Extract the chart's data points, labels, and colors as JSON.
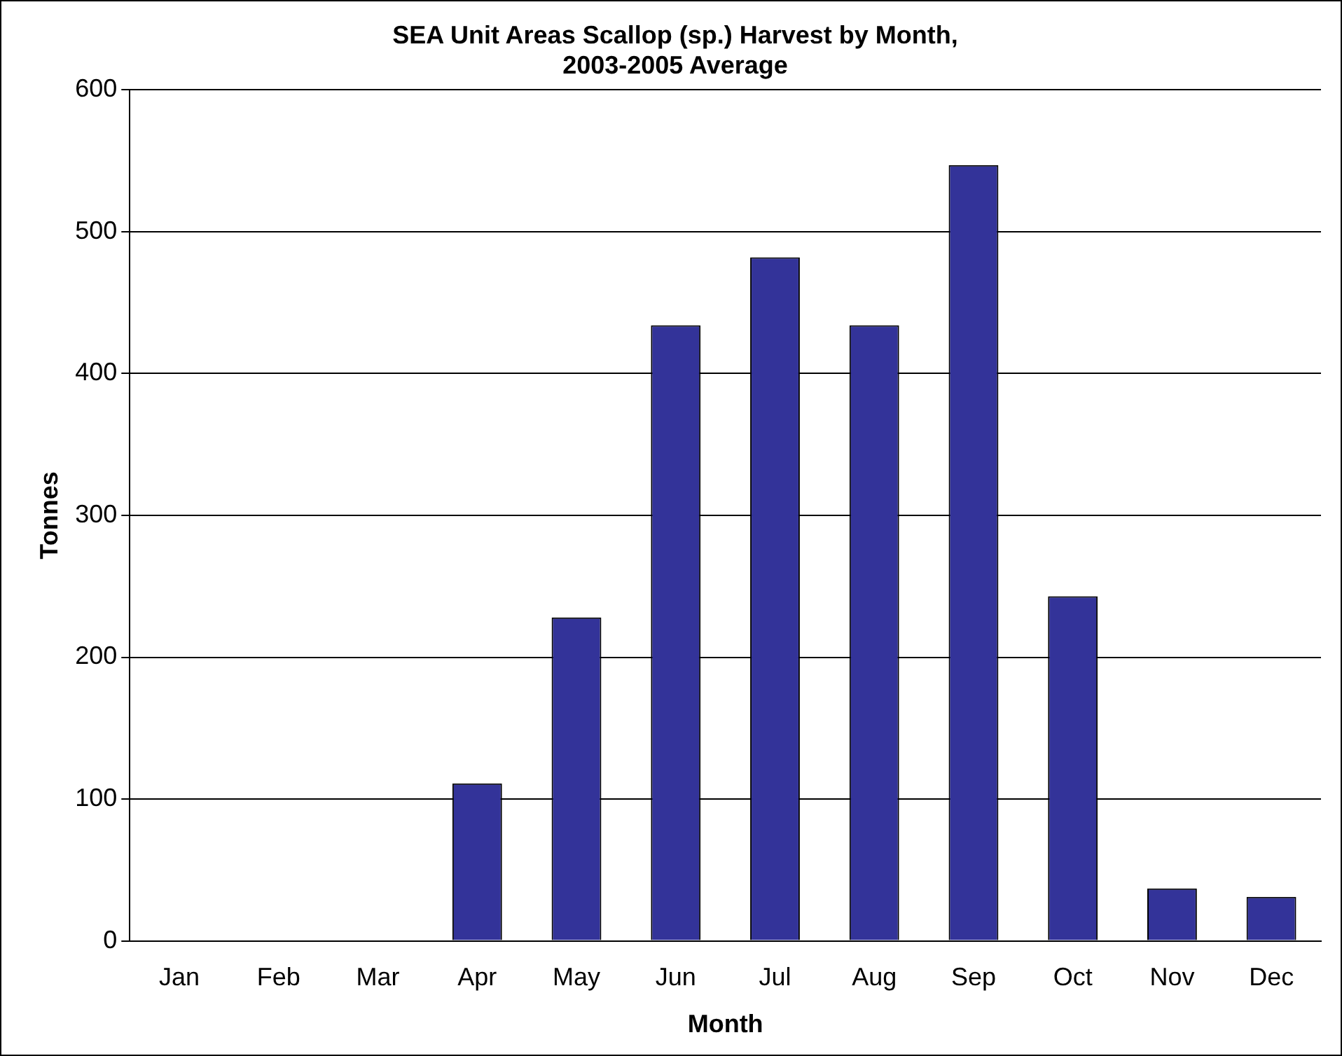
{
  "chart_data": {
    "type": "bar",
    "title": "SEA Unit Areas Scallop (sp.) Harvest by Month,\n2003-2005 Average",
    "xlabel": "Month",
    "ylabel": "Tonnes",
    "categories": [
      "Jan",
      "Feb",
      "Mar",
      "Apr",
      "May",
      "Jun",
      "Jul",
      "Aug",
      "Sep",
      "Oct",
      "Nov",
      "Dec"
    ],
    "values": [
      0,
      0,
      0,
      111,
      228,
      434,
      482,
      434,
      547,
      243,
      37,
      31
    ],
    "color": "#333399",
    "ylim": [
      0,
      600
    ],
    "yticks": [
      0,
      100,
      200,
      300,
      400,
      500,
      600
    ],
    "grid": "y",
    "legend": false
  }
}
